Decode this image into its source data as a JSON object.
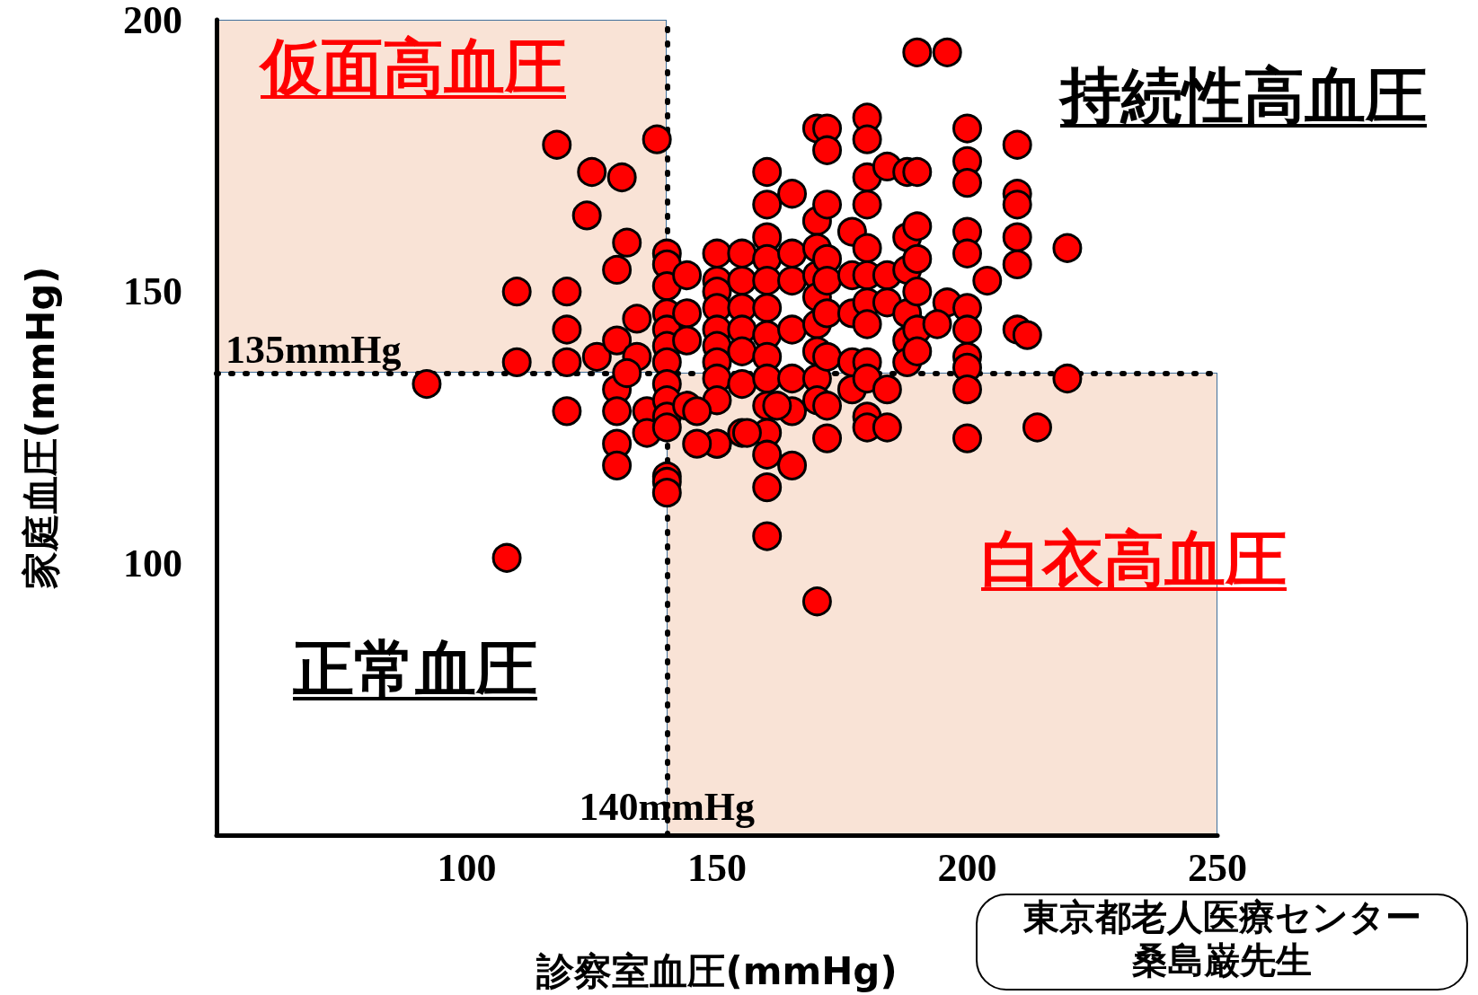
{
  "chart_data": {
    "type": "scatter",
    "xlabel": "診察室血圧(mmHg)",
    "ylabel": "家庭血圧(mmHg)",
    "xlim": [
      50,
      250
    ],
    "xticks": [
      100,
      150,
      200,
      250
    ],
    "ylim": [
      50,
      200
    ],
    "yticks": [
      100,
      150,
      200
    ],
    "grid": false,
    "marker": "circle",
    "series": [
      {
        "color": "#ff0000",
        "x": [
          92,
          108,
          110,
          110,
          118,
          120,
          120,
          120,
          120,
          125,
          124,
          126,
          131,
          132,
          130,
          130,
          130,
          130,
          130,
          130,
          134,
          134,
          132,
          136,
          136,
          138,
          140,
          140,
          140,
          140,
          140,
          140,
          140,
          140,
          140,
          140,
          140,
          140,
          140,
          140,
          150,
          150,
          150,
          150,
          150,
          150,
          150,
          150,
          150,
          150,
          150,
          144,
          144,
          144,
          144,
          155,
          155,
          155,
          155,
          155,
          155,
          155,
          160,
          160,
          160,
          160,
          160,
          160,
          160,
          160,
          160,
          160,
          160,
          160,
          160,
          160,
          165,
          165,
          165,
          165,
          165,
          165,
          165,
          170,
          170,
          170,
          170,
          170,
          170,
          170,
          170,
          170,
          170,
          172,
          172,
          172,
          172,
          172,
          172,
          172,
          172,
          172,
          177,
          177,
          177,
          177,
          177,
          180,
          180,
          180,
          180,
          180,
          180,
          180,
          180,
          180,
          180,
          180,
          180,
          184,
          184,
          184,
          184,
          184,
          188,
          188,
          188,
          188,
          188,
          188,
          190,
          190,
          190,
          190,
          190,
          190,
          190,
          196,
          196,
          194,
          200,
          200,
          200,
          200,
          200,
          200,
          200,
          200,
          200,
          200,
          200,
          204,
          210,
          210,
          210,
          210,
          210,
          210,
          212,
          220,
          220,
          214,
          146,
          146,
          156,
          162
        ],
        "values": [
          133,
          101,
          150,
          137,
          177,
          150,
          143,
          137,
          128,
          172,
          164,
          138,
          171,
          159,
          154,
          141,
          132,
          128,
          122,
          118,
          145,
          138,
          135,
          128,
          124,
          178,
          157,
          155,
          151,
          146,
          143,
          140,
          137,
          133,
          130,
          127,
          125,
          116,
          115,
          113,
          157,
          152,
          150,
          147,
          143,
          140,
          137,
          134,
          130,
          122,
          122,
          153,
          146,
          141,
          129,
          157,
          152,
          147,
          143,
          139,
          133,
          124,
          172,
          166,
          160,
          156,
          152,
          147,
          142,
          138,
          134,
          129,
          124,
          120,
          114,
          105,
          168,
          157,
          152,
          143,
          134,
          128,
          118,
          180,
          163,
          158,
          153,
          149,
          144,
          139,
          134,
          130,
          93,
          180,
          176,
          166,
          156,
          152,
          146,
          138,
          129,
          123,
          161,
          153,
          146,
          137,
          132,
          182,
          178,
          171,
          166,
          158,
          153,
          148,
          144,
          137,
          134,
          127,
          125,
          173,
          153,
          148,
          132,
          125,
          172,
          160,
          154,
          146,
          141,
          137,
          194,
          172,
          162,
          156,
          150,
          143,
          139,
          194,
          148,
          144,
          180,
          174,
          170,
          161,
          157,
          147,
          143,
          138,
          136,
          132,
          123,
          152,
          177,
          168,
          166,
          160,
          155,
          143,
          142,
          158,
          134,
          125,
          128,
          122,
          124,
          129
        ]
      }
    ],
    "ref_lines": [
      {
        "axis": "x",
        "value": 140,
        "label": "140mmHg",
        "color": "#000000",
        "line_style": "dotted"
      },
      {
        "axis": "y",
        "value": 135,
        "label": "135mmHg",
        "color": "#000000",
        "line_style": "dotted"
      }
    ],
    "annotations": [
      "仮面高血圧",
      "持続性高血圧",
      "白衣高血圧",
      "正常血圧",
      "東京都老人医療センター",
      "桑島巌先生"
    ]
  }
}
